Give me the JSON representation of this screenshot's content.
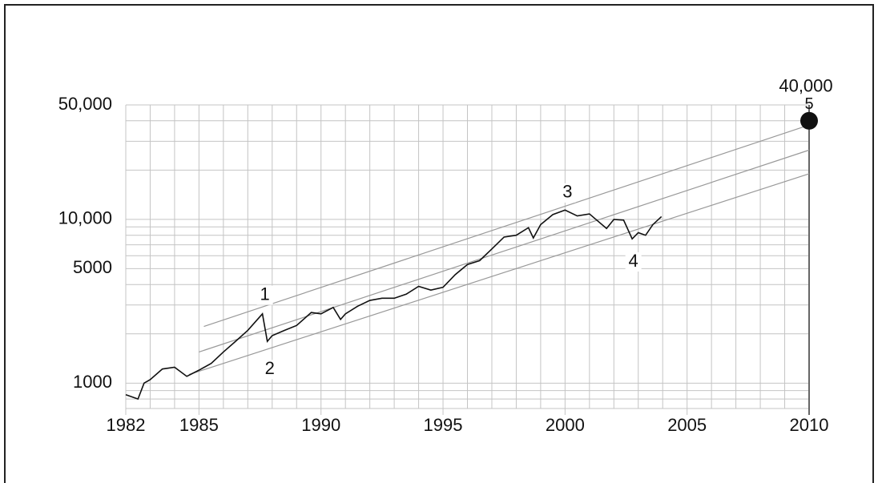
{
  "chart_data": {
    "type": "line",
    "log_scale_y": true,
    "grid": true,
    "xlim": [
      1982,
      2010
    ],
    "xticks": [
      1982,
      1985,
      1990,
      1995,
      2000,
      2005,
      2010
    ],
    "x_minor_ticks": [
      1983,
      1984,
      1986,
      1987,
      1988,
      1989,
      1991,
      1992,
      1993,
      1994,
      1996,
      1997,
      1998,
      1999,
      2001,
      2002,
      2003,
      2004,
      2006,
      2007,
      2008,
      2009
    ],
    "ylim": [
      700,
      50000
    ],
    "yticks": [
      1000,
      5000,
      {
        "value": 10000,
        "label": "10,000"
      },
      {
        "value": 50000,
        "label": "50,000"
      }
    ],
    "y_minor_ticks": [
      700,
      800,
      900,
      2000,
      3000,
      4000,
      6000,
      7000,
      8000,
      9000,
      20000,
      30000,
      40000
    ],
    "series": [
      {
        "color": "#111111",
        "x": [
          1982.0,
          1982.5,
          1982.75,
          1983.0,
          1983.5,
          1984.0,
          1984.5,
          1985.0,
          1985.5,
          1986.0,
          1986.5,
          1987.0,
          1987.6,
          1987.8,
          1988.0,
          1988.5,
          1989.0,
          1989.6,
          1990.0,
          1990.5,
          1990.8,
          1991.0,
          1991.5,
          1992.0,
          1992.5,
          1993.0,
          1993.5,
          1994.0,
          1994.5,
          1995.0,
          1995.5,
          1996.0,
          1996.5,
          1997.0,
          1997.5,
          1998.0,
          1998.5,
          1998.7,
          1999.0,
          1999.5,
          2000.0,
          2000.5,
          2001.0,
          2001.7,
          2002.0,
          2002.4,
          2002.75,
          2003.0,
          2003.3,
          2003.6,
          2003.95
        ],
        "values": [
          850,
          800,
          1000,
          1050,
          1220,
          1250,
          1100,
          1200,
          1320,
          1550,
          1800,
          2100,
          2650,
          1800,
          1950,
          2100,
          2250,
          2700,
          2650,
          2900,
          2450,
          2650,
          2950,
          3200,
          3300,
          3300,
          3500,
          3900,
          3700,
          3850,
          4600,
          5300,
          5600,
          6600,
          7800,
          8000,
          8900,
          7700,
          9300,
          10700,
          11400,
          10500,
          10800,
          8800,
          10000,
          9900,
          7600,
          8300,
          8000,
          9300,
          10400
        ]
      }
    ],
    "channel_lines": [
      {
        "color": "#999999",
        "x": [
          1985.2,
          2010
        ],
        "values": [
          2220,
          37700
        ]
      },
      {
        "color": "#999999",
        "x": [
          1985.0,
          2010
        ],
        "values": [
          1550,
          26500
        ]
      },
      {
        "color": "#999999",
        "x": [
          1984.6,
          2010
        ],
        "values": [
          1130,
          19000
        ]
      }
    ],
    "annotations": [
      {
        "label": "1",
        "x": 1987.7,
        "value": 3440
      },
      {
        "label": "2",
        "x": 1987.9,
        "value": 1210
      },
      {
        "label": "3",
        "x": 2000.1,
        "value": 14500
      },
      {
        "label": "4",
        "x": 2002.8,
        "value": 5500
      }
    ],
    "target": {
      "x": 2010,
      "value": 40000,
      "value_label": "40,000",
      "label": "5",
      "color": "#111111"
    }
  }
}
